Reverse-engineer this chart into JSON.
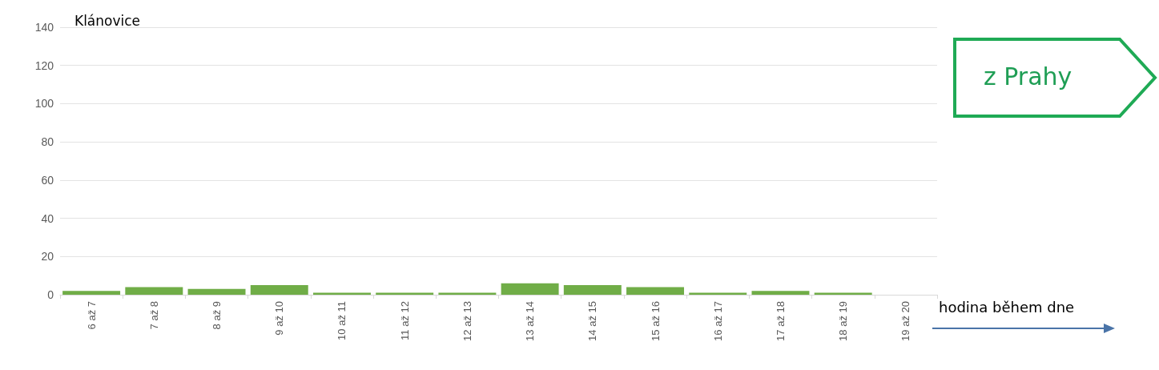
{
  "chart_data": {
    "type": "bar",
    "title": "Klánovice",
    "xlabel": "hodina během dne",
    "annotations": [
      "z Prahy"
    ],
    "categories": [
      "6 až 7",
      "7 až 8",
      "8 až 9",
      "9 až 10",
      "10 až 11",
      "11 až 12",
      "12 až 13",
      "13 až 14",
      "14 až 15",
      "15 až 16",
      "16 až 17",
      "17 až 18",
      "18 až 19",
      "19 až 20"
    ],
    "values": [
      2,
      4,
      3,
      5,
      1,
      1,
      1,
      6,
      5,
      4,
      1,
      2,
      1,
      0
    ],
    "color": "#70ad47",
    "ylim": [
      0,
      140
    ],
    "yticks": [
      0,
      20,
      40,
      60,
      80,
      100,
      120,
      140
    ],
    "grid": "y"
  }
}
